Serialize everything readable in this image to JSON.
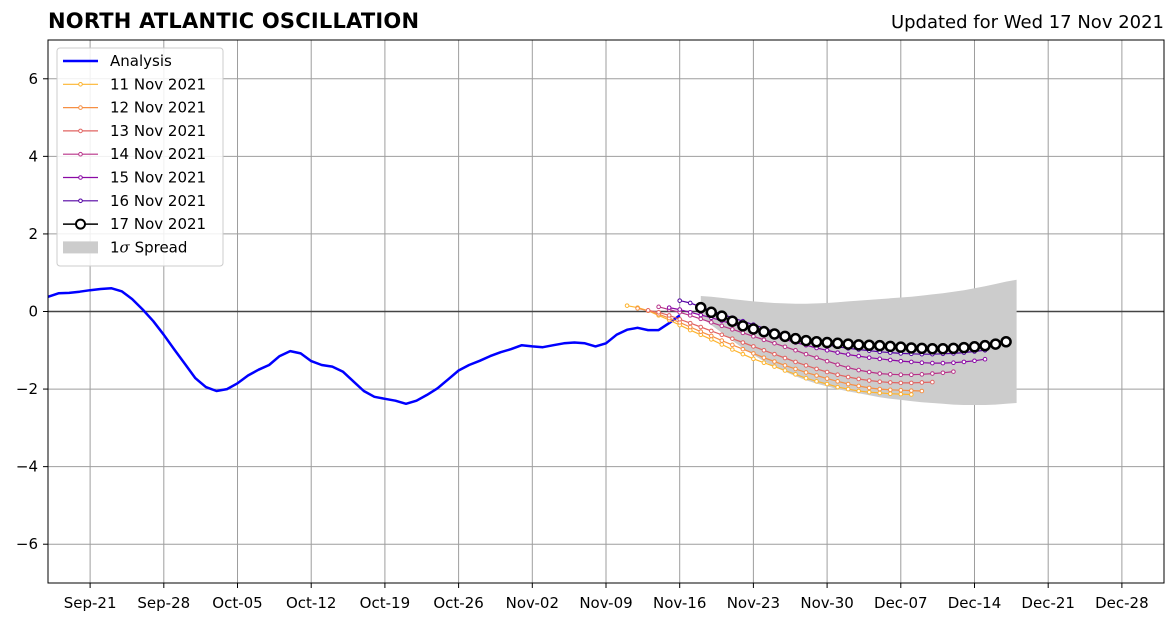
{
  "header": {
    "title": "NORTH ATLANTIC OSCILLATION",
    "subtitle": "Updated for Wed 17 Nov 2021"
  },
  "chart_data": {
    "type": "line",
    "title": "NORTH ATLANTIC OSCILLATION",
    "xlabel": "",
    "ylabel": "",
    "xlim": [
      "2021-09-17",
      "2022-01-01"
    ],
    "ylim": [
      -7,
      7
    ],
    "grid": true,
    "legend_position": "top-left",
    "x_ticks": [
      "Sep-21",
      "Sep-28",
      "Oct-05",
      "Oct-12",
      "Oct-19",
      "Oct-26",
      "Nov-02",
      "Nov-09",
      "Nov-16",
      "Nov-23",
      "Nov-30",
      "Dec-07",
      "Dec-14",
      "Dec-21",
      "Dec-28"
    ],
    "x_tick_dates": [
      "2021-09-21",
      "2021-09-28",
      "2021-10-05",
      "2021-10-12",
      "2021-10-19",
      "2021-10-26",
      "2021-11-02",
      "2021-11-09",
      "2021-11-16",
      "2021-11-23",
      "2021-11-30",
      "2021-12-07",
      "2021-12-14",
      "2021-12-21",
      "2021-12-28"
    ],
    "y_ticks": [
      "−6",
      "−4",
      "−2",
      "0",
      "2",
      "4",
      "6"
    ],
    "y_tick_values": [
      -6,
      -4,
      -2,
      0,
      2,
      4,
      6
    ],
    "analysis": {
      "name": "Analysis",
      "color": "#0000ff",
      "start_date": "2021-09-17",
      "values": [
        0.38,
        0.47,
        0.48,
        0.51,
        0.55,
        0.58,
        0.6,
        0.52,
        0.32,
        0.05,
        -0.25,
        -0.6,
        -0.98,
        -1.35,
        -1.72,
        -1.95,
        -2.05,
        -2.0,
        -1.85,
        -1.65,
        -1.5,
        -1.38,
        -1.15,
        -1.02,
        -1.08,
        -1.28,
        -1.38,
        -1.42,
        -1.55,
        -1.8,
        -2.05,
        -2.2,
        -2.25,
        -2.3,
        -2.38,
        -2.3,
        -2.15,
        -1.98,
        -1.75,
        -1.52,
        -1.38,
        -1.27,
        -1.15,
        -1.05,
        -0.97,
        -0.87,
        -0.9,
        -0.92,
        -0.87,
        -0.82,
        -0.8,
        -0.82,
        -0.9,
        -0.82,
        -0.6,
        -0.47,
        -0.42,
        -0.48,
        -0.48,
        -0.3,
        -0.1
      ]
    },
    "forecasts": [
      {
        "name": "11 Nov 2021",
        "color": "#fdb42f",
        "start_date": "2021-11-11",
        "values": [
          0.15,
          0.1,
          0.02,
          -0.1,
          -0.22,
          -0.35,
          -0.48,
          -0.6,
          -0.72,
          -0.85,
          -0.98,
          -1.1,
          -1.22,
          -1.32,
          -1.42,
          -1.52,
          -1.62,
          -1.72,
          -1.8,
          -1.87,
          -1.95,
          -2.0,
          -2.05,
          -2.08,
          -2.1,
          -2.12,
          -2.13,
          -2.14
        ]
      },
      {
        "name": "12 Nov 2021",
        "color": "#f68f44",
        "start_date": "2021-11-12",
        "values": [
          0.08,
          0.02,
          -0.07,
          -0.17,
          -0.28,
          -0.4,
          -0.52,
          -0.63,
          -0.75,
          -0.86,
          -0.97,
          -1.08,
          -1.19,
          -1.29,
          -1.39,
          -1.48,
          -1.57,
          -1.65,
          -1.73,
          -1.8,
          -1.87,
          -1.92,
          -1.97,
          -2.0,
          -2.02,
          -2.03,
          -2.04,
          -2.05
        ]
      },
      {
        "name": "13 Nov 2021",
        "color": "#e16462",
        "start_date": "2021-11-13",
        "values": [
          0.03,
          -0.02,
          -0.1,
          -0.2,
          -0.3,
          -0.4,
          -0.5,
          -0.6,
          -0.7,
          -0.8,
          -0.9,
          -1.0,
          -1.1,
          -1.2,
          -1.3,
          -1.39,
          -1.48,
          -1.56,
          -1.63,
          -1.69,
          -1.74,
          -1.78,
          -1.81,
          -1.83,
          -1.84,
          -1.84,
          -1.83,
          -1.82
        ]
      },
      {
        "name": "14 Nov 2021",
        "color": "#b83289",
        "start_date": "2021-11-14",
        "values": [
          0.12,
          0.05,
          -0.02,
          -0.1,
          -0.19,
          -0.28,
          -0.37,
          -0.46,
          -0.55,
          -0.64,
          -0.73,
          -0.82,
          -0.91,
          -1.0,
          -1.1,
          -1.19,
          -1.28,
          -1.37,
          -1.45,
          -1.51,
          -1.56,
          -1.6,
          -1.62,
          -1.63,
          -1.63,
          -1.62,
          -1.6,
          -1.58,
          -1.55
        ]
      },
      {
        "name": "15 Nov 2021",
        "color": "#8b0aa5",
        "start_date": "2021-11-15",
        "values": [
          0.1,
          0.05,
          -0.02,
          -0.09,
          -0.16,
          -0.24,
          -0.32,
          -0.4,
          -0.48,
          -0.56,
          -0.64,
          -0.72,
          -0.8,
          -0.87,
          -0.94,
          -1.0,
          -1.06,
          -1.11,
          -1.15,
          -1.19,
          -1.22,
          -1.25,
          -1.28,
          -1.3,
          -1.32,
          -1.33,
          -1.33,
          -1.32,
          -1.3,
          -1.27,
          -1.23
        ]
      },
      {
        "name": "16 Nov 2021",
        "color": "#5302a3",
        "start_date": "2021-11-16",
        "values": [
          0.28,
          0.22,
          0.12,
          0.02,
          -0.07,
          -0.16,
          -0.25,
          -0.34,
          -0.43,
          -0.52,
          -0.6,
          -0.67,
          -0.74,
          -0.8,
          -0.86,
          -0.91,
          -0.95,
          -0.98,
          -1.01,
          -1.04,
          -1.06,
          -1.08,
          -1.09,
          -1.1,
          -1.1,
          -1.09,
          -1.08,
          -1.06,
          -1.03,
          -1.0
        ]
      },
      {
        "name": "17 Nov 2021",
        "color": "#000000",
        "start_date": "2021-11-18",
        "values": [
          0.1,
          -0.02,
          -0.12,
          -0.25,
          -0.37,
          -0.45,
          -0.52,
          -0.58,
          -0.64,
          -0.7,
          -0.75,
          -0.78,
          -0.8,
          -0.82,
          -0.84,
          -0.86,
          -0.87,
          -0.88,
          -0.9,
          -0.92,
          -0.94,
          -0.95,
          -0.96,
          -0.96,
          -0.95,
          -0.93,
          -0.91,
          -0.88,
          -0.84,
          -0.78
        ]
      }
    ],
    "spread": {
      "name": "1σ Spread",
      "color": "#cccccc",
      "start_date": "2021-11-18",
      "upper": [
        0.4,
        0.38,
        0.35,
        0.32,
        0.29,
        0.26,
        0.24,
        0.22,
        0.21,
        0.2,
        0.2,
        0.21,
        0.22,
        0.24,
        0.26,
        0.28,
        0.3,
        0.32,
        0.34,
        0.36,
        0.38,
        0.41,
        0.44,
        0.47,
        0.51,
        0.55,
        0.6,
        0.65,
        0.71,
        0.77,
        0.82
      ],
      "lower": [
        -0.15,
        -0.35,
        -0.55,
        -0.75,
        -0.95,
        -1.12,
        -1.28,
        -1.42,
        -1.55,
        -1.67,
        -1.77,
        -1.86,
        -1.93,
        -2.0,
        -2.06,
        -2.11,
        -2.16,
        -2.21,
        -2.25,
        -2.28,
        -2.31,
        -2.34,
        -2.36,
        -2.38,
        -2.4,
        -2.41,
        -2.41,
        -2.41,
        -2.4,
        -2.38,
        -2.36
      ]
    }
  }
}
